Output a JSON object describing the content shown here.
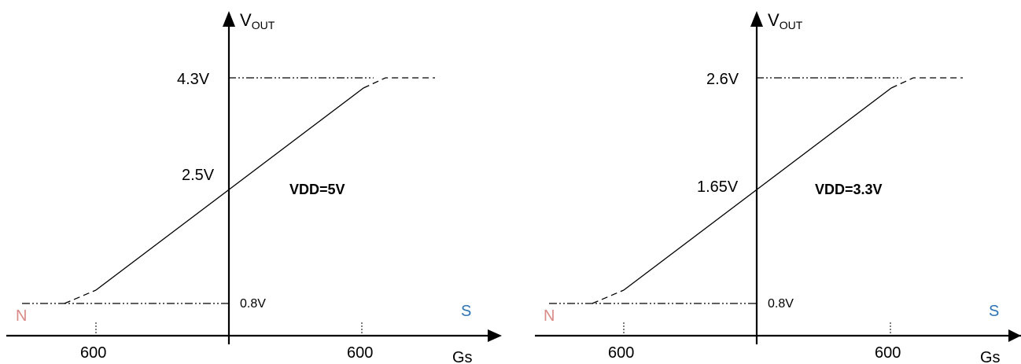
{
  "colors": {
    "north": "#d98b87",
    "south": "#2e74b5",
    "line": "#000000"
  },
  "charts": [
    {
      "y_axis_label_main": "V",
      "y_axis_label_sub": "OUT",
      "x_axis_label": "Gs",
      "top_voltage_label": "4.3V",
      "mid_voltage_label": "2.5V",
      "bottom_voltage_label": "0.8V",
      "supply_label": "VDD=5V",
      "north_label": "N",
      "south_label": "S",
      "left_field_label": "600",
      "right_field_label": "600"
    },
    {
      "y_axis_label_main": "V",
      "y_axis_label_sub": "OUT",
      "x_axis_label": "Gs",
      "top_voltage_label": "2.6V",
      "mid_voltage_label": "1.65V",
      "bottom_voltage_label": "0.8V",
      "supply_label": "VDD=3.3V",
      "north_label": "N",
      "south_label": "S",
      "left_field_label": "600",
      "right_field_label": "600"
    }
  ]
}
